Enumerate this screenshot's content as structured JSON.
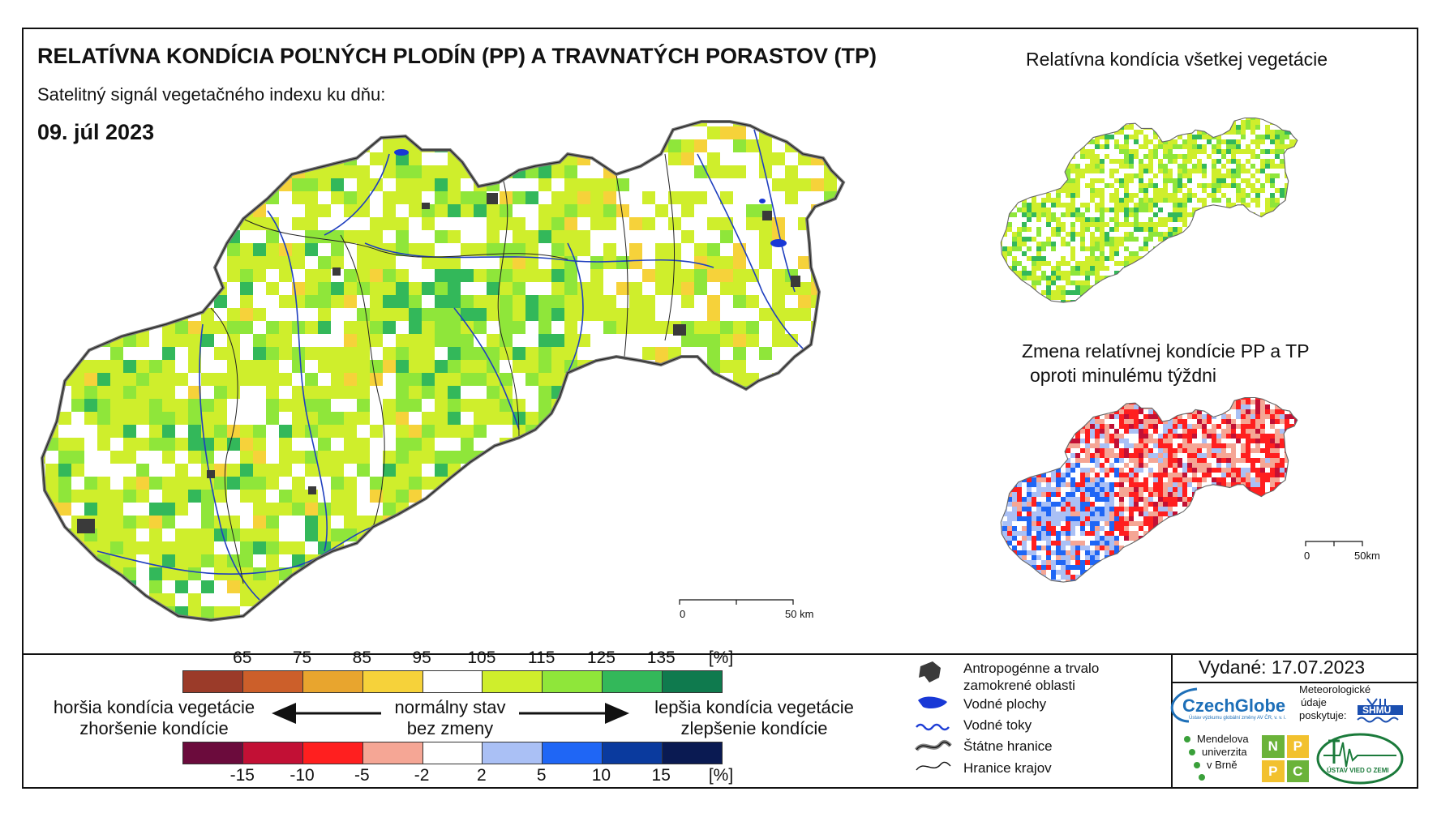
{
  "header": {
    "title": "RELATÍVNA KONDÍCIA POĽNÝCH PLODÍN (PP) A TRAVNATÝCH PORASTOV (TP)",
    "subtitle": "Satelitný signál vegetačného indexu ku dňu:",
    "date": "09. júl 2023"
  },
  "insets": {
    "top_title": "Relatívna kondícia všetkej vegetácie",
    "bottom_title_line1": "Zmena relatívnej kondície PP a TP",
    "bottom_title_line2": "oproti minulému týždni"
  },
  "scalebars": {
    "main": {
      "start": "0",
      "end": "50 km"
    },
    "inset": {
      "start": "0",
      "end": "50km"
    }
  },
  "legend": {
    "condition_ticks": [
      "65",
      "75",
      "85",
      "95",
      "105",
      "115",
      "125",
      "135",
      "[%]"
    ],
    "condition_colors": [
      "#9b3b29",
      "#cc5f2a",
      "#e8a52e",
      "#f6d23a",
      "#ffffff",
      "#cfee2c",
      "#8fe63a",
      "#33b85a",
      "#0f7a4e"
    ],
    "change_ticks": [
      "-15",
      "-10",
      "-5",
      "-2",
      "2",
      "5",
      "10",
      "15",
      "[%]"
    ],
    "change_colors": [
      "#6b0b3c",
      "#c21035",
      "#ff1f1f",
      "#f5a695",
      "#ffffff",
      "#aac0f5",
      "#1f66f5",
      "#0a3a9e",
      "#0a1a52"
    ],
    "left_text_1": "horšia kondícia vegetácie",
    "left_text_2": "zhoršenie kondície",
    "center_text_1": "normálny stav",
    "center_text_2": "bez zmeny",
    "right_text_1": "lepšia kondícia vegetácie",
    "right_text_2": "zlepšenie kondície"
  },
  "map_key": {
    "items": [
      {
        "icon": "urban-area-icon",
        "label_1": "Antropogénne a trvalo",
        "label_2": "zamokrené oblasti"
      },
      {
        "icon": "water-body-icon",
        "label_1": "Vodné plochy"
      },
      {
        "icon": "river-icon",
        "label_1": "Vodné toky"
      },
      {
        "icon": "state-border-icon",
        "label_1": "Štátne hranice"
      },
      {
        "icon": "region-border-icon",
        "label_1": "Hranice krajov"
      }
    ]
  },
  "credits": {
    "issued": "Vydané: 17.07.2023",
    "czechglobe": "CzechGlobe",
    "czechglobe_sub": "Ústav výzkumu globální změny AV ČR, v. v. i.",
    "meteo_1": "Meteorologické",
    "meteo_2": "údaje",
    "meteo_3": "poskytuje:",
    "shmu": "SHMÚ",
    "mendel_1": "Mendelova",
    "mendel_2": "univerzita",
    "mendel_3": "v Brně",
    "nppc": [
      "N",
      "P",
      "P",
      "C"
    ],
    "uvz": "ÚSTAV VIED O ZEMI"
  }
}
